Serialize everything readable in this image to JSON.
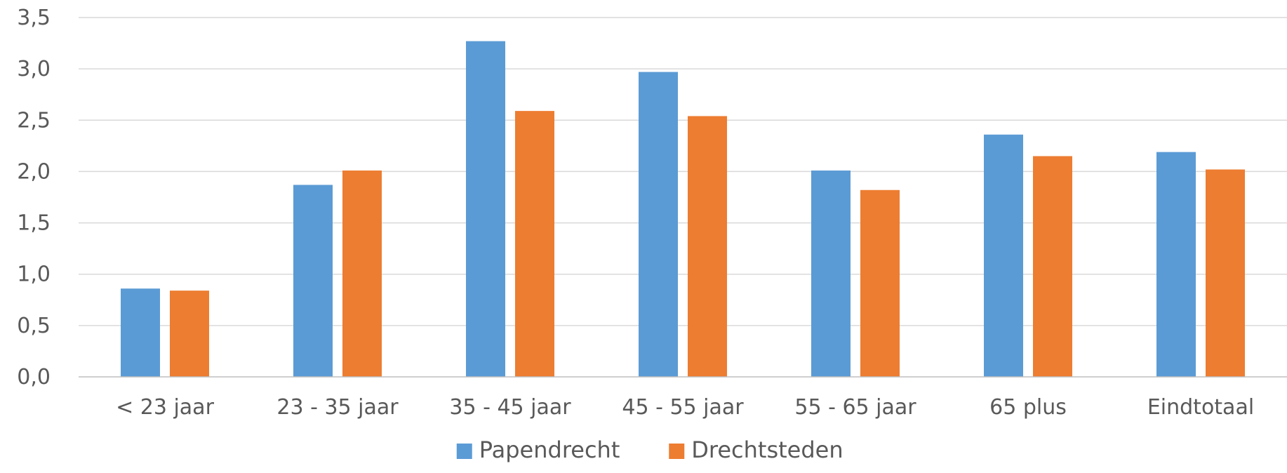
{
  "chart_data": {
    "type": "bar",
    "categories": [
      "< 23 jaar",
      "23 - 35 jaar",
      "35 - 45 jaar",
      "45 - 55 jaar",
      "55 - 65 jaar",
      "65 plus",
      "Eindtotaal"
    ],
    "series": [
      {
        "name": "Papendrecht",
        "color": "#5B9BD5",
        "values": [
          0.86,
          1.87,
          3.27,
          2.97,
          2.01,
          2.36,
          2.19
        ]
      },
      {
        "name": "Drechtsteden",
        "color": "#ED7D31",
        "values": [
          0.84,
          2.01,
          2.59,
          2.54,
          1.82,
          2.15,
          2.02
        ]
      }
    ],
    "yticks": [
      "0,0",
      "0,5",
      "1,0",
      "1,5",
      "2,0",
      "2,5",
      "3,0",
      "3,5"
    ],
    "ylim": [
      0,
      3.5
    ],
    "ytick_step": 0.5,
    "grid": true,
    "legend_position": "bottom"
  }
}
